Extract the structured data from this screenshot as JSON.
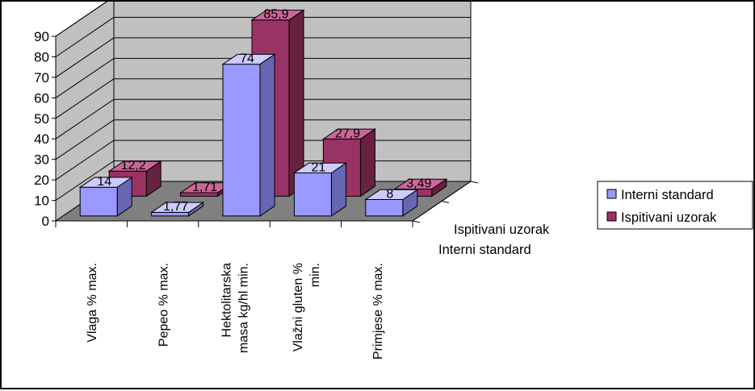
{
  "chart_data": {
    "type": "bar",
    "categories": [
      "Vlaga % max.",
      "Pepeo % max.",
      "Hektolitarska masa kg/hl min.",
      "Vlažni gluten % min.",
      "Primjese % max."
    ],
    "series": [
      {
        "name": "Interni standard",
        "values": [
          14,
          1.77,
          74,
          21,
          8
        ],
        "labels": [
          "14",
          "1,77",
          "74",
          "21",
          "8"
        ]
      },
      {
        "name": "Ispitivani uzorak",
        "values": [
          12.2,
          1.71,
          85.9,
          27.9,
          3.49
        ],
        "labels": [
          "12,2",
          "1,71",
          "85,9",
          "27,9",
          "3,49"
        ]
      }
    ],
    "ylim": [
      0,
      90
    ],
    "yticks": [
      "0",
      "10",
      "20",
      "30",
      "40",
      "50",
      "60",
      "70",
      "80",
      "90"
    ],
    "depth_axis_labels": [
      "Interni standard",
      "Ispitivani uzorak"
    ],
    "legend_position": "right",
    "grid": true,
    "colors": {
      "series1_front": "#9999ff",
      "series2_front": "#993366",
      "wall": "#c0c0c0",
      "floor": "#808080"
    }
  }
}
